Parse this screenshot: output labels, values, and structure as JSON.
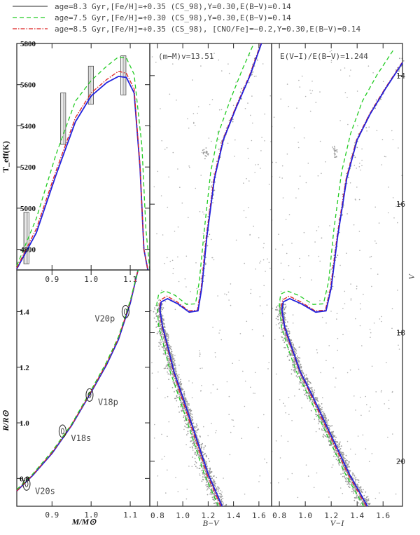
{
  "legend": [
    {
      "label": "age=8.3 Gyr,[Fe/H]=+0.35 (CS_98),Y=0.30,E(B−V)=0.14",
      "color": "#555555",
      "dash": "solid"
    },
    {
      "label": "age=7.5 Gyr,[Fe/H]=+0.30 (CS_98),Y=0.30,E(B−V)=0.14",
      "color": "#22cc22",
      "dash": "dashed"
    },
    {
      "label": "age=8.5 Gyr,[Fe/H]=+0.35 (CS_98), [CNO/Fe]=−0.2,Y=0.30,E(B−V)=0.14",
      "color": "#dd2222",
      "dash": "dashdot"
    }
  ],
  "blue_color": "#2222dd",
  "chart_data": [
    {
      "type": "line",
      "panel": "mass-teff",
      "xlabel": "",
      "ylabel": "T_eff(K)",
      "xlim": [
        0.81,
        1.15
      ],
      "ylim": [
        4700,
        5800
      ],
      "x_ticks": [
        "0.9",
        "1.0",
        "1.1"
      ],
      "y_ticks": [
        "4800",
        "5000",
        "5200",
        "5400",
        "5600",
        "5800"
      ],
      "series": [
        {
          "style": "blue",
          "x": [
            0.81,
            0.86,
            0.91,
            0.96,
            1.0,
            1.04,
            1.07,
            1.09,
            1.11,
            1.125,
            1.135,
            1.145
          ],
          "y": [
            4705,
            4880,
            5160,
            5420,
            5545,
            5610,
            5640,
            5635,
            5560,
            5200,
            4800,
            4700
          ]
        },
        {
          "style": "red",
          "x": [
            0.81,
            0.86,
            0.91,
            0.96,
            1.0,
            1.04,
            1.07,
            1.09,
            1.11,
            1.125,
            1.135,
            1.145
          ],
          "y": [
            4710,
            4900,
            5180,
            5440,
            5560,
            5625,
            5665,
            5655,
            5580,
            5210,
            4800,
            4700
          ]
        },
        {
          "style": "green",
          "x": [
            0.81,
            0.86,
            0.91,
            0.96,
            1.0,
            1.04,
            1.07,
            1.09,
            1.11,
            1.13,
            1.14,
            1.15
          ],
          "y": [
            4720,
            4950,
            5260,
            5520,
            5620,
            5690,
            5735,
            5730,
            5650,
            5300,
            4900,
            4700
          ]
        }
      ],
      "error_boxes": [
        {
          "x": [
            0.828,
            0.841
          ],
          "y": [
            4730,
            4980
          ]
        },
        {
          "x": [
            0.922,
            0.935
          ],
          "y": [
            5310,
            5560
          ]
        },
        {
          "x": [
            0.993,
            1.006
          ],
          "y": [
            5505,
            5690
          ]
        },
        {
          "x": [
            1.076,
            1.089
          ],
          "y": [
            5550,
            5740
          ]
        }
      ]
    },
    {
      "type": "line",
      "panel": "mass-radius",
      "xlabel": "M/M⊙",
      "ylabel": "R/R⊙",
      "xlim": [
        0.81,
        1.15
      ],
      "ylim": [
        0.7,
        1.55
      ],
      "x_ticks": [
        "0.9",
        "1.0",
        "1.1"
      ],
      "y_ticks": [
        "0.8",
        "1.0",
        "1.2",
        "1.4"
      ],
      "series": [
        {
          "style": "blue",
          "x": [
            0.81,
            0.85,
            0.9,
            0.95,
            1.0,
            1.04,
            1.07,
            1.1,
            1.12
          ],
          "y": [
            0.755,
            0.81,
            0.89,
            0.99,
            1.11,
            1.21,
            1.3,
            1.43,
            1.55
          ]
        },
        {
          "style": "red",
          "x": [
            0.81,
            0.85,
            0.9,
            0.95,
            1.0,
            1.04,
            1.07,
            1.1,
            1.12
          ],
          "y": [
            0.755,
            0.812,
            0.893,
            0.992,
            1.113,
            1.215,
            1.305,
            1.435,
            1.55
          ]
        },
        {
          "style": "green",
          "x": [
            0.81,
            0.85,
            0.9,
            0.95,
            1.0,
            1.04,
            1.07,
            1.1,
            1.12
          ],
          "y": [
            0.76,
            0.815,
            0.897,
            0.995,
            1.118,
            1.22,
            1.31,
            1.44,
            1.55
          ]
        }
      ],
      "stars": [
        {
          "label": "V20p",
          "x": 1.088,
          "y": 1.4
        },
        {
          "label": "V18p",
          "x": 0.996,
          "y": 1.1
        },
        {
          "label": "V18s",
          "x": 0.927,
          "y": 0.97
        },
        {
          "label": "V20s",
          "x": 0.835,
          "y": 0.78
        }
      ]
    },
    {
      "type": "scatter",
      "panel": "cmd-bv",
      "xlabel": "B−V",
      "ylabel": "",
      "annotation": "(m−M)v=13.51",
      "xlim": [
        0.74,
        1.7
      ],
      "ylim": [
        20.7,
        13.5
      ],
      "x_ticks": [
        "0.8",
        "1.0",
        "1.2",
        "1.4",
        "1.6"
      ],
      "series": [
        {
          "style": "blue",
          "x": [
            1.31,
            1.2,
            1.1,
            1.0,
            0.93,
            0.88,
            0.84,
            0.82,
            0.83,
            0.88,
            0.96,
            1.05,
            1.12,
            1.15,
            1.19,
            1.25,
            1.32,
            1.42,
            1.53,
            1.62
          ],
          "y": [
            20.7,
            20.2,
            19.6,
            19.0,
            18.6,
            18.2,
            17.9,
            17.65,
            17.52,
            17.47,
            17.55,
            17.68,
            17.66,
            17.3,
            16.5,
            15.6,
            15.0,
            14.5,
            14.0,
            13.5
          ]
        },
        {
          "style": "red",
          "x": [
            1.3,
            1.19,
            1.09,
            0.99,
            0.925,
            0.875,
            0.835,
            0.815,
            0.825,
            0.875,
            0.955,
            1.045,
            1.115,
            1.145,
            1.185,
            1.245,
            1.315,
            1.415,
            1.525,
            1.615
          ],
          "y": [
            20.7,
            20.2,
            19.6,
            19.0,
            18.6,
            18.2,
            17.9,
            17.62,
            17.49,
            17.43,
            17.52,
            17.66,
            17.65,
            17.3,
            16.5,
            15.6,
            15.0,
            14.5,
            14.0,
            13.5
          ]
        },
        {
          "style": "green",
          "x": [
            1.28,
            1.17,
            1.07,
            0.97,
            0.9,
            0.85,
            0.81,
            0.795,
            0.81,
            0.86,
            0.94,
            1.03,
            1.1,
            1.13,
            1.17,
            1.22,
            1.28,
            1.37,
            1.47,
            1.56
          ],
          "y": [
            20.7,
            20.2,
            19.6,
            19.0,
            18.6,
            18.2,
            17.9,
            17.55,
            17.4,
            17.35,
            17.42,
            17.56,
            17.55,
            17.2,
            16.4,
            15.5,
            14.9,
            14.4,
            13.9,
            13.5
          ]
        }
      ]
    },
    {
      "type": "scatter",
      "panel": "cmd-vi",
      "xlabel": "V−I",
      "ylabel": "V",
      "annotation": "E(V−I)/E(B−V)=1.244",
      "xlim": [
        0.74,
        1.75
      ],
      "ylim": [
        20.7,
        13.5
      ],
      "x_ticks": [
        "0.8",
        "1.0",
        "1.2",
        "1.4",
        "1.6"
      ],
      "y_ticks": [
        "14",
        "16",
        "18",
        "20"
      ],
      "series": [
        {
          "style": "blue",
          "x": [
            1.48,
            1.34,
            1.2,
            1.06,
            0.96,
            0.89,
            0.84,
            0.82,
            0.83,
            0.88,
            0.97,
            1.08,
            1.16,
            1.2,
            1.25,
            1.32,
            1.4,
            1.5,
            1.62,
            1.75
          ],
          "y": [
            20.7,
            20.2,
            19.6,
            19.0,
            18.6,
            18.2,
            17.9,
            17.65,
            17.52,
            17.47,
            17.55,
            17.68,
            17.66,
            17.3,
            16.5,
            15.6,
            15.0,
            14.6,
            14.2,
            13.8
          ]
        },
        {
          "style": "red",
          "x": [
            1.47,
            1.33,
            1.19,
            1.05,
            0.955,
            0.885,
            0.835,
            0.815,
            0.825,
            0.875,
            0.965,
            1.075,
            1.155,
            1.195,
            1.245,
            1.315,
            1.395,
            1.495,
            1.615,
            1.745
          ],
          "y": [
            20.7,
            20.2,
            19.6,
            19.0,
            18.6,
            18.2,
            17.9,
            17.62,
            17.49,
            17.43,
            17.52,
            17.66,
            17.65,
            17.3,
            16.5,
            15.6,
            15.0,
            14.6,
            14.2,
            13.8
          ]
        },
        {
          "style": "green",
          "x": [
            1.45,
            1.31,
            1.17,
            1.03,
            0.93,
            0.86,
            0.815,
            0.8,
            0.81,
            0.86,
            0.95,
            1.06,
            1.14,
            1.18,
            1.22,
            1.28,
            1.35,
            1.44,
            1.55,
            1.68
          ],
          "y": [
            20.7,
            20.2,
            19.6,
            19.0,
            18.6,
            18.2,
            17.9,
            17.55,
            17.4,
            17.35,
            17.42,
            17.56,
            17.55,
            17.2,
            16.4,
            15.5,
            14.9,
            14.4,
            14.0,
            13.6
          ]
        }
      ]
    }
  ]
}
